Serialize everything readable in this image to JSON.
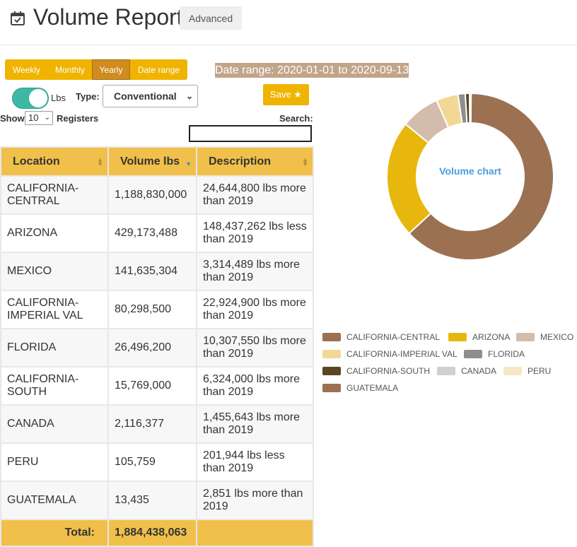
{
  "header": {
    "title": "Volume Report",
    "advanced_label": "Advanced"
  },
  "period": {
    "options": [
      "Weekly",
      "Monthly",
      "Yearly",
      "Date range"
    ],
    "selected": "Yearly"
  },
  "date_range_text": "Date range: 2020-01-01 to 2020-09-13",
  "controls": {
    "unit_label": "Lbs",
    "type_label": "Type:",
    "type_value": "Conventional",
    "save_label": "Save ★",
    "show_label": "Show",
    "show_value": "10",
    "registers_label": "Registers",
    "search_label": "Search:",
    "search_value": ""
  },
  "table": {
    "columns": [
      "Location",
      "Volume lbs",
      "Description"
    ],
    "rows": [
      {
        "location": "CALIFORNIA-CENTRAL",
        "volume": "1,188,830,000",
        "description": "24,644,800 lbs more than 2019"
      },
      {
        "location": "ARIZONA",
        "volume": "429,173,488",
        "description": "148,437,262 lbs less than 2019"
      },
      {
        "location": "MEXICO",
        "volume": "141,635,304",
        "description": "3,314,489 lbs more than 2019"
      },
      {
        "location": "CALIFORNIA-IMPERIAL VAL",
        "volume": "80,298,500",
        "description": "22,924,900 lbs more than 2019"
      },
      {
        "location": "FLORIDA",
        "volume": "26,496,200",
        "description": "10,307,550 lbs more than 2019"
      },
      {
        "location": "CALIFORNIA-SOUTH",
        "volume": "15,769,000",
        "description": "6,324,000 lbs more than 2019"
      },
      {
        "location": "CANADA",
        "volume": "2,116,377",
        "description": "1,455,643 lbs more than 2019"
      },
      {
        "location": "PERU",
        "volume": "105,759",
        "description": "201,944 lbs less than 2019"
      },
      {
        "location": "GUATEMALA",
        "volume": "13,435",
        "description": "2,851 lbs more than 2019"
      }
    ],
    "total_label": "Total:",
    "total_value": "1,884,438,063"
  },
  "chart_data": {
    "type": "pie",
    "title": "Volume chart",
    "categories": [
      "CALIFORNIA-CENTRAL",
      "ARIZONA",
      "MEXICO",
      "CALIFORNIA-IMPERIAL VAL",
      "FLORIDA",
      "CALIFORNIA-SOUTH",
      "CANADA",
      "PERU",
      "GUATEMALA"
    ],
    "values": [
      1188830000,
      429173488,
      141635304,
      80298500,
      26496200,
      15769000,
      2116377,
      105759,
      13435
    ],
    "colors": [
      "#9c7152",
      "#e8b70e",
      "#d4bcac",
      "#f2d894",
      "#8e8e8e",
      "#5c4522",
      "#d0d0d0",
      "#f6e8c4",
      "#9c7152"
    ],
    "legend_position": "bottom"
  }
}
